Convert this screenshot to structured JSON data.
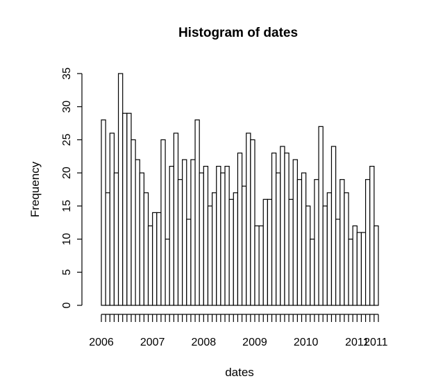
{
  "chart_data": {
    "type": "bar",
    "title": "Histogram of dates",
    "xlabel": "dates",
    "ylabel": "Frequency",
    "ylim": [
      0,
      35
    ],
    "y_ticks": [
      0,
      5,
      10,
      15,
      20,
      25,
      30,
      35
    ],
    "x_tick_labels": [
      "2006",
      "2007",
      "2008",
      "2009",
      "2010",
      "2011",
      "2011"
    ],
    "values": [
      28,
      17,
      26,
      20,
      35,
      29,
      29,
      25,
      22,
      20,
      17,
      12,
      14,
      14,
      25,
      10,
      21,
      26,
      19,
      22,
      13,
      22,
      28,
      20,
      21,
      15,
      17,
      21,
      20,
      21,
      16,
      17,
      23,
      18,
      26,
      25,
      12,
      12,
      16,
      16,
      23,
      20,
      24,
      23,
      16,
      22,
      19,
      20,
      15,
      10,
      19,
      27,
      15,
      17,
      24,
      13,
      19,
      17,
      10,
      12,
      11,
      11,
      19,
      21,
      12
    ],
    "grid": false,
    "legend": "none",
    "colors": {
      "bar_fill": "#ffffff",
      "bar_stroke": "#000000"
    }
  }
}
